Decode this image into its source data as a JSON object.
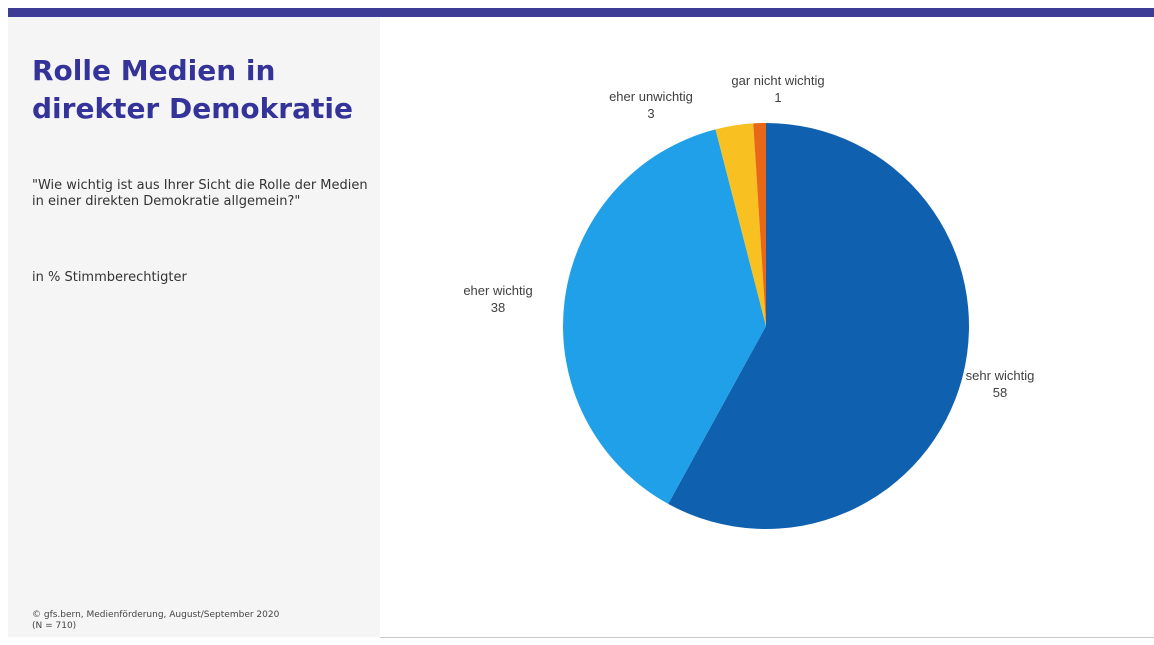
{
  "slide": {
    "title": "Rolle Medien in direkter Demokratie",
    "question": "\"Wie wichtig ist aus Ihrer Sicht die Rolle der Medien in einer direkten Demokratie allgemein?\"",
    "unit_note": "in % Stimmberechtigter",
    "source": "© gfs.bern, Medienförderung, August/September 2020\n(N = 710)"
  },
  "colors": {
    "top_bar": "#3c3c96",
    "title": "#33339a",
    "sidebar": "#f5f5f5"
  },
  "chart_data": {
    "type": "pie",
    "title": "",
    "slices": [
      {
        "label": "sehr wichtig",
        "value": 58,
        "color": "#1060b0"
      },
      {
        "label": "eher wichtig",
        "value": 38,
        "color": "#20a0e8"
      },
      {
        "label": "eher unwichtig",
        "value": 3,
        "color": "#f8c020"
      },
      {
        "label": "gar nicht wichtig",
        "value": 1,
        "color": "#e86818"
      }
    ],
    "start": "12 o'clock",
    "direction": "clockwise",
    "labels": "outside, category name above value"
  }
}
